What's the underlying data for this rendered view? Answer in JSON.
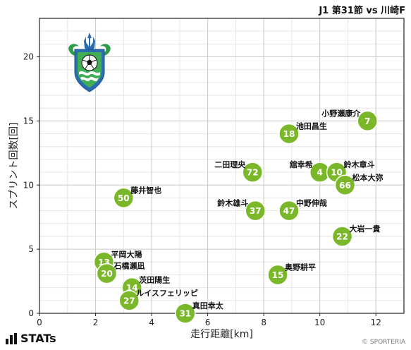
{
  "header": {
    "title": "J1 第31節 vs 川崎F"
  },
  "footer": {
    "brand": "STATs",
    "copyright": "© SPORTERIA"
  },
  "colors": {
    "point": "#7ab829",
    "point_stroke": "#ffffff",
    "grid": "#cccccc",
    "axis": "#222222"
  },
  "logo": {
    "icon": "shonan-bellmare-emblem-icon"
  },
  "chart_data": {
    "type": "scatter",
    "title": "",
    "xlabel": "走行距離[km]",
    "ylabel": "スプリント回数[回]",
    "xlim": [
      0,
      13
    ],
    "ylim": [
      0,
      23
    ],
    "xticks": [
      0,
      2,
      4,
      6,
      8,
      10,
      12
    ],
    "yticks": [
      0,
      5,
      10,
      15,
      20
    ],
    "grid": true,
    "points": [
      {
        "number": "7",
        "name": "小野瀬康介",
        "x": 11.7,
        "y": 15,
        "label_side": "left-top"
      },
      {
        "number": "18",
        "name": "池田昌生",
        "x": 8.9,
        "y": 14,
        "label_side": "right-top"
      },
      {
        "number": "72",
        "name": "二田理央",
        "x": 7.6,
        "y": 11,
        "label_side": "left-top"
      },
      {
        "number": "4",
        "name": "舘幸希",
        "x": 10.0,
        "y": 11,
        "label_side": "left-top"
      },
      {
        "number": "10",
        "name": "鈴木章斗",
        "x": 10.6,
        "y": 11,
        "label_side": "right-top"
      },
      {
        "number": "66",
        "name": "松本大弥",
        "x": 10.9,
        "y": 10,
        "label_side": "right-top"
      },
      {
        "number": "50",
        "name": "藤井智也",
        "x": 3.0,
        "y": 9,
        "label_side": "right-top"
      },
      {
        "number": "37",
        "name": "鈴木雄斗",
        "x": 7.7,
        "y": 8,
        "label_side": "left-top"
      },
      {
        "number": "47",
        "name": "中野伸哉",
        "x": 8.9,
        "y": 8,
        "label_side": "right-top"
      },
      {
        "number": "22",
        "name": "大岩一貴",
        "x": 10.8,
        "y": 6,
        "label_side": "right-top"
      },
      {
        "number": "13",
        "name": "平岡大陽",
        "x": 2.3,
        "y": 4,
        "label_side": "right-top"
      },
      {
        "number": "20",
        "name": "石橋瀬凪",
        "x": 2.4,
        "y": 3.1,
        "label_side": "right-top"
      },
      {
        "number": "15",
        "name": "奥野耕平",
        "x": 8.5,
        "y": 3,
        "label_side": "right-top"
      },
      {
        "number": "14",
        "name": "茨田陽生",
        "x": 3.3,
        "y": 2,
        "label_side": "right-top"
      },
      {
        "number": "27",
        "name": "ルイスフェリッピ",
        "x": 3.2,
        "y": 1,
        "label_side": "right-top"
      },
      {
        "number": "31",
        "name": "真田幸太",
        "x": 5.2,
        "y": 0,
        "label_side": "right-top"
      }
    ]
  }
}
